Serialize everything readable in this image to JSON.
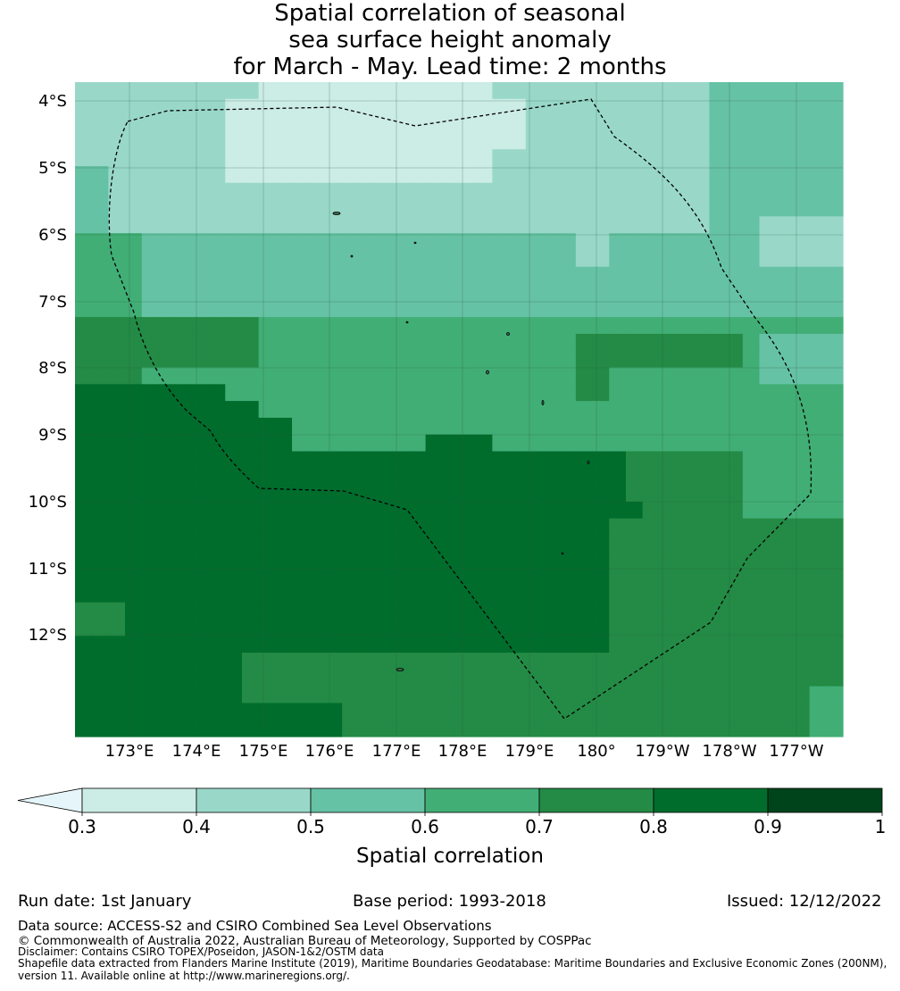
{
  "title": {
    "line1": "Spatial correlation of seasonal",
    "line2": "sea surface height anomaly",
    "line3": "for March - May. Lead time: 2 months"
  },
  "map": {
    "lon_labels": [
      "173°E",
      "174°E",
      "175°E",
      "176°E",
      "177°E",
      "178°E",
      "179°E",
      "180°",
      "179°W",
      "178°W",
      "177°W"
    ],
    "lat_labels": [
      "4°S",
      "5°S",
      "6°S",
      "7°S",
      "8°S",
      "9°S",
      "10°S",
      "11°S",
      "12°S"
    ],
    "boundary_style": "dashed black line (EEZ)",
    "grid": true
  },
  "colorbar": {
    "label": "Spatial correlation",
    "tick_labels": [
      "0.3",
      "0.4",
      "0.5",
      "0.6",
      "0.7",
      "0.8",
      "0.9",
      "1"
    ],
    "colors": [
      "#ccece6",
      "#99d8c9",
      "#66c2a4",
      "#41ae76",
      "#238b45",
      "#006d2c",
      "#00441b"
    ],
    "below_range_color": "#e5f5f9",
    "extend": "min"
  },
  "footer": {
    "run_date": "Run date: 1st January",
    "base_period": "Base period: 1993-2018",
    "issued": "Issued: 12/12/2022",
    "data_source": "Data source: ACCESS-S2 and CSIRO Combined Sea Level Observations",
    "copyright": "© Commonwealth of Australia 2022, Australian Bureau of Meteorology, Supported by COSPPac",
    "disclaimer": "Disclaimer: Contains CSIRO TOPEX/Poseidon, JASON-1&2/OSTM data",
    "shapefile_line1": "Shapefile data extracted from Flanders Marine Institute (2019), Maritime Boundaries Geodatabase: Maritime Boundaries and Exclusive Economic Zones (200NM),",
    "shapefile_line2": "version 11. Available online at http://www.marineregions.org/."
  }
}
